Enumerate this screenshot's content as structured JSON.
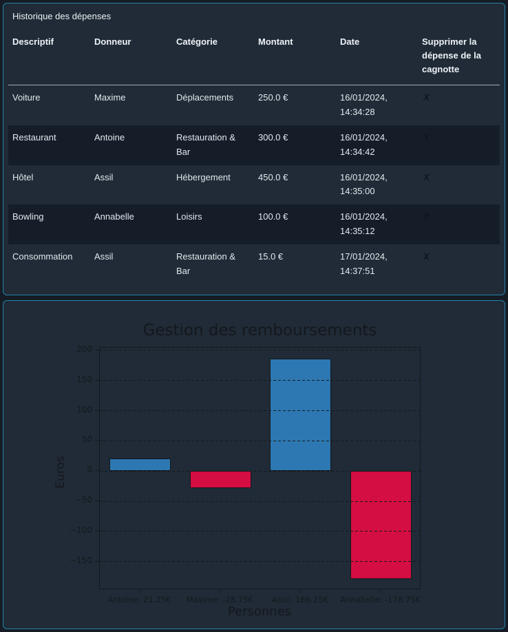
{
  "colors": {
    "page_bg": "#151c24",
    "card_bg": "#202b37",
    "card_border": "#2383ad",
    "row_stripe": "#151d28",
    "table_text": "#e2e8ee",
    "header_text": "#eef2f7",
    "header_rule": "#a7aeb6",
    "delete_x": "#10151b",
    "chart_ink": "#15181c",
    "bar_positive": "#2d78b2",
    "bar_negative": "#d40e42"
  },
  "expenses_card": {
    "title": "Historique des dépenses",
    "table": {
      "columns": [
        "Descriptif",
        "Donneur",
        "Catégorie",
        "Montant",
        "Date",
        "Supprimer la dépense de la cagnotte"
      ],
      "rows": [
        {
          "descriptif": "Voiture",
          "donneur": "Maxime",
          "categorie": "Déplacements",
          "montant": "250.0 €",
          "date": "16/01/2024, 14:34:28",
          "delete_label": "X"
        },
        {
          "descriptif": "Restaurant",
          "donneur": "Antoine",
          "categorie": "Restauration & Bar",
          "montant": "300.0 €",
          "date": "16/01/2024, 14:34:42",
          "delete_label": "X"
        },
        {
          "descriptif": "Hôtel",
          "donneur": "Assil",
          "categorie": "Hébergement",
          "montant": "450.0 €",
          "date": "16/01/2024, 14:35:00",
          "delete_label": "X"
        },
        {
          "descriptif": "Bowling",
          "donneur": "Annabelle",
          "categorie": "Loisirs",
          "montant": "100.0 €",
          "date": "16/01/2024, 14:35:12",
          "delete_label": "X"
        },
        {
          "descriptif": "Consommation",
          "donneur": "Assil",
          "categorie": "Restauration & Bar",
          "montant": "15.0 €",
          "date": "17/01/2024, 14:37:51",
          "delete_label": "X"
        }
      ]
    }
  },
  "chart_card": {
    "chart_data": {
      "type": "bar",
      "title": "Gestion des remboursements",
      "xlabel": "Personnes",
      "ylabel": "Euros",
      "categories": [
        "Antoine",
        "Maxime",
        "Assil",
        "Annabelle"
      ],
      "values": [
        21.25,
        -28.75,
        186.25,
        -178.75
      ],
      "tick_labels": [
        "Antoine: 21.25€",
        "Maxime: -28.75€",
        "Assil: 186.25€",
        "Annabelle: -178.75€"
      ],
      "bar_colors": [
        "#2d78b2",
        "#d40e42",
        "#2d78b2",
        "#d40e42"
      ],
      "yticks": [
        -150,
        -100,
        -50,
        0,
        50,
        100,
        150,
        200
      ],
      "ylim": [
        -197,
        204.5
      ],
      "grid": "dashed",
      "legend": "none"
    }
  }
}
